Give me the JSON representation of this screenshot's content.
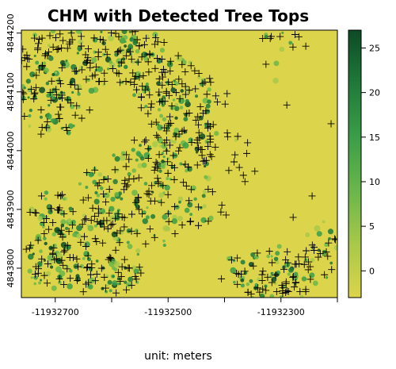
{
  "title": "CHM with Detected Tree Tops",
  "unit_label": "unit: meters",
  "colors": {
    "background_low": "#dcd44a",
    "mid_green": "#4caf50",
    "dark_green": "#0d4a26",
    "marker": "#000000"
  },
  "map_data": {
    "type": "raster-map",
    "raster": "Canopy Height Model",
    "overlay": "tree-top markers (+)",
    "x_range": [
      -11932760,
      -11932200
    ],
    "y_range": [
      4843750,
      4844205
    ],
    "x_ticks": [
      {
        "value": -11932700,
        "label": "-11932700"
      },
      {
        "value": -11932500,
        "label": "-11932500"
      },
      {
        "value": -11932300,
        "label": "-11932300"
      }
    ],
    "y_ticks": [
      {
        "value": 4843800,
        "label": "4843800"
      },
      {
        "value": 4843900,
        "label": "4843900"
      },
      {
        "value": 4844000,
        "label": "4844000"
      },
      {
        "value": 4844100,
        "label": "4844100"
      },
      {
        "value": 4844200,
        "label": "4844200"
      }
    ],
    "colorbar": {
      "min": -3,
      "max": 27,
      "ticks": [
        {
          "value": 0,
          "label": "0"
        },
        {
          "value": 5,
          "label": "5"
        },
        {
          "value": 10,
          "label": "10"
        },
        {
          "value": 15,
          "label": "15"
        },
        {
          "value": 20,
          "label": "20"
        },
        {
          "value": 25,
          "label": "25"
        }
      ],
      "stops": [
        "#dcd44a",
        "#a8c84a",
        "#6ab64a",
        "#3a9e48",
        "#1f7a3a",
        "#0d4a26"
      ]
    }
  }
}
